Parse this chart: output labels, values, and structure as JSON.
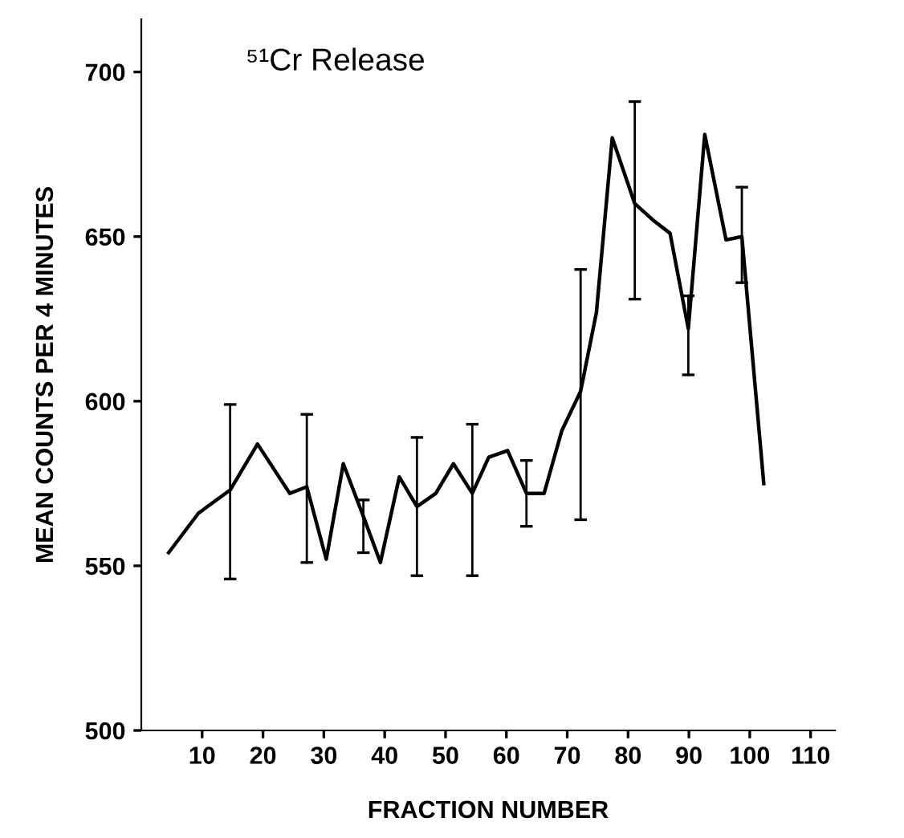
{
  "chart_data": {
    "type": "line",
    "title": "⁵¹Cr Release",
    "xlabel": "FRACTION NUMBER",
    "ylabel": "MEAN COUNTS PER 4 MINUTES",
    "x": [
      4.5,
      9.4,
      14.6,
      19.1,
      24.4,
      27.2,
      30.4,
      33.2,
      36.5,
      39.3,
      42.4,
      45.3,
      48.4,
      51.3,
      54.4,
      57.1,
      60.2,
      63.3,
      66.2,
      69.1,
      72.2,
      74.8,
      77.4,
      81.1,
      84.1,
      86.9,
      89.9,
      92.6,
      96.1,
      98.7,
      102.3
    ],
    "series": [
      {
        "color": "#000000",
        "values": [
          554,
          566,
          573,
          587,
          572,
          574,
          552,
          581,
          565,
          551,
          577,
          568,
          572,
          581,
          572,
          583,
          585,
          572,
          572,
          591,
          603,
          627,
          680,
          660,
          655,
          651,
          622,
          681,
          649,
          650,
          575
        ],
        "errors": [
          null,
          null,
          [
            546,
            599
          ],
          null,
          null,
          [
            551,
            596
          ],
          null,
          null,
          [
            554,
            570
          ],
          null,
          null,
          [
            547,
            589
          ],
          null,
          null,
          [
            547,
            593
          ],
          null,
          null,
          [
            562,
            582
          ],
          null,
          null,
          [
            564,
            640
          ],
          null,
          null,
          [
            631,
            691
          ],
          null,
          null,
          [
            608,
            632
          ],
          null,
          null,
          [
            636,
            665
          ],
          null
        ]
      }
    ],
    "xlim": [
      0,
      114
    ],
    "ylim": [
      500,
      716
    ],
    "xticks": [
      10,
      20,
      30,
      40,
      50,
      60,
      70,
      80,
      90,
      100,
      110
    ],
    "yticks": [
      500,
      550,
      600,
      650,
      700
    ],
    "grid": false,
    "legend": false,
    "marker": "none",
    "line_style": "solid"
  }
}
